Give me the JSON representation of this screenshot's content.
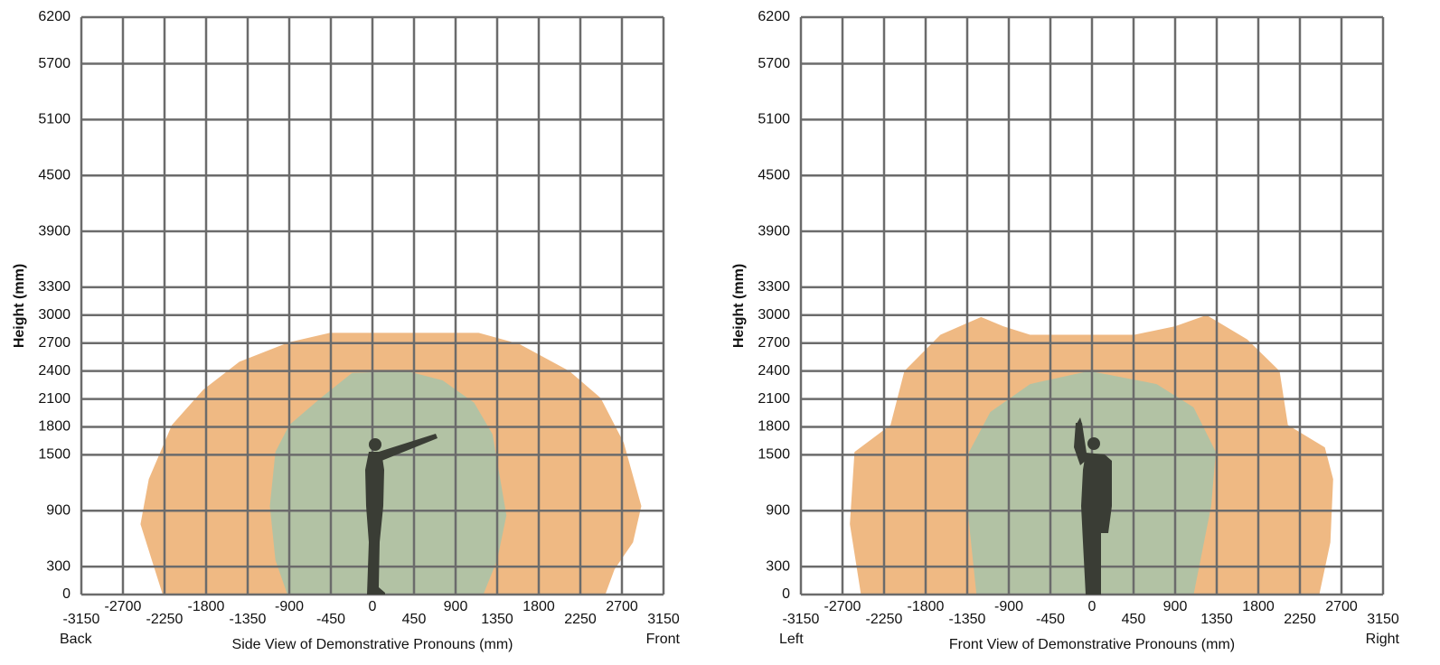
{
  "chart_data": [
    {
      "type": "region",
      "xlabel": "Side View of Demonstrative Pronouns (mm)",
      "ylabel": "Height (mm)",
      "x_end_labels": [
        "Back",
        "Front"
      ],
      "xlim": [
        -3150,
        3150
      ],
      "ylim": [
        0,
        6200
      ],
      "xticks": [
        -3150,
        -2700,
        -2250,
        -1800,
        -1350,
        -900,
        -450,
        0,
        450,
        900,
        1350,
        1800,
        2250,
        2700,
        3150
      ],
      "yticks": [
        0,
        300,
        900,
        1500,
        1800,
        2100,
        2400,
        2700,
        3000,
        3300,
        3900,
        4500,
        5100,
        5700,
        6200
      ],
      "grid": true,
      "series": [
        {
          "color": "#efb983",
          "x": [
            -2270,
            -2510,
            -2420,
            -2170,
            -1830,
            -1440,
            -900,
            -460,
            1150,
            1590,
            2130,
            2470,
            2720,
            2910,
            2820,
            2620,
            2520
          ],
          "y": [
            0,
            755,
            1240,
            1820,
            2200,
            2500,
            2710,
            2810,
            2810,
            2690,
            2400,
            2110,
            1630,
            950,
            560,
            270,
            0
          ]
        },
        {
          "color": "#b2c2a4",
          "x": [
            -920,
            -1050,
            -1110,
            -1050,
            -900,
            -560,
            -220,
            370,
            760,
            1100,
            1300,
            1400,
            1450,
            1350,
            1200
          ],
          "y": [
            0,
            370,
            950,
            1530,
            1820,
            2110,
            2380,
            2400,
            2300,
            2060,
            1720,
            1140,
            850,
            370,
            0
          ]
        }
      ]
    },
    {
      "type": "region",
      "xlabel": "Front View of Demonstrative Pronouns (mm)",
      "ylabel": "Height (mm)",
      "x_end_labels": [
        "Left",
        "Right"
      ],
      "xlim": [
        -3150,
        3150
      ],
      "ylim": [
        0,
        6200
      ],
      "xticks": [
        -3150,
        -2700,
        -2250,
        -1800,
        -1350,
        -900,
        -450,
        0,
        450,
        900,
        1350,
        1800,
        2250,
        2700,
        3150
      ],
      "yticks": [
        0,
        300,
        900,
        1500,
        1800,
        2100,
        2400,
        2700,
        3000,
        3300,
        3900,
        4500,
        5100,
        5700,
        6200
      ],
      "grid": true,
      "series": [
        {
          "color": "#efb983",
          "x": [
            -2500,
            -2620,
            -2570,
            -2180,
            -2030,
            -1640,
            -1200,
            -960,
            -670,
            460,
            900,
            1240,
            1680,
            2030,
            2120,
            2520,
            2610,
            2580,
            2460
          ],
          "y": [
            0,
            755,
            1530,
            1820,
            2400,
            2790,
            2980,
            2880,
            2790,
            2790,
            2880,
            3000,
            2740,
            2400,
            1820,
            1580,
            1240,
            560,
            0
          ]
        },
        {
          "color": "#b2c2a4",
          "x": [
            -1250,
            -1350,
            -1330,
            -1100,
            -670,
            -30,
            700,
            1100,
            1340,
            1290,
            1100
          ],
          "y": [
            0,
            950,
            1530,
            1960,
            2260,
            2400,
            2260,
            2010,
            1530,
            950,
            0
          ]
        }
      ]
    }
  ]
}
